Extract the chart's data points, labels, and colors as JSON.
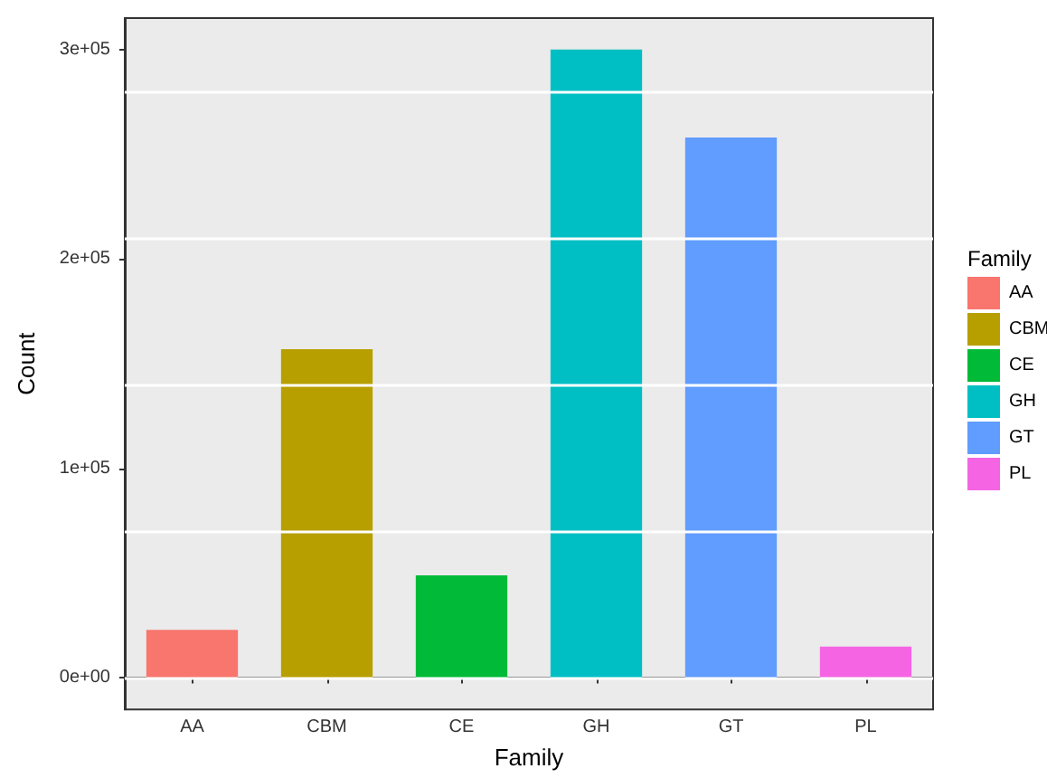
{
  "chart_data": {
    "type": "bar",
    "xlabel": "Family",
    "ylabel": "Count",
    "legend_title": "Family",
    "categories": [
      "AA",
      "CBM",
      "CE",
      "GH",
      "GT",
      "PL"
    ],
    "series": [
      {
        "name": "AA",
        "color": "#f8766d",
        "values": [
          23000,
          null,
          null,
          null,
          null,
          null
        ]
      },
      {
        "name": "CBM",
        "color": "#b79f00",
        "values": [
          null,
          157000,
          null,
          null,
          null,
          null
        ]
      },
      {
        "name": "CE",
        "color": "#00ba38",
        "values": [
          null,
          null,
          49000,
          null,
          null,
          null
        ]
      },
      {
        "name": "GH",
        "color": "#00bfc4",
        "values": [
          null,
          null,
          null,
          300000,
          null,
          null
        ]
      },
      {
        "name": "GT",
        "color": "#619cff",
        "values": [
          null,
          null,
          null,
          null,
          258000,
          null
        ]
      },
      {
        "name": "PL",
        "color": "#f564e3",
        "values": [
          null,
          null,
          null,
          null,
          null,
          15000
        ]
      }
    ],
    "ylim": [
      -15000,
      315000
    ],
    "yticks": [
      {
        "value": 0,
        "label": "0e+00"
      },
      {
        "value": 70000,
        "label": null
      },
      {
        "value": 100000,
        "label": "1e+05"
      },
      {
        "value": 140000,
        "label": null
      },
      {
        "value": 200000,
        "label": "2e+05"
      },
      {
        "value": 210000,
        "label": null
      },
      {
        "value": 280000,
        "label": null
      },
      {
        "value": 300000,
        "label": "3e+05"
      }
    ],
    "grid": "y",
    "legend": "right"
  }
}
